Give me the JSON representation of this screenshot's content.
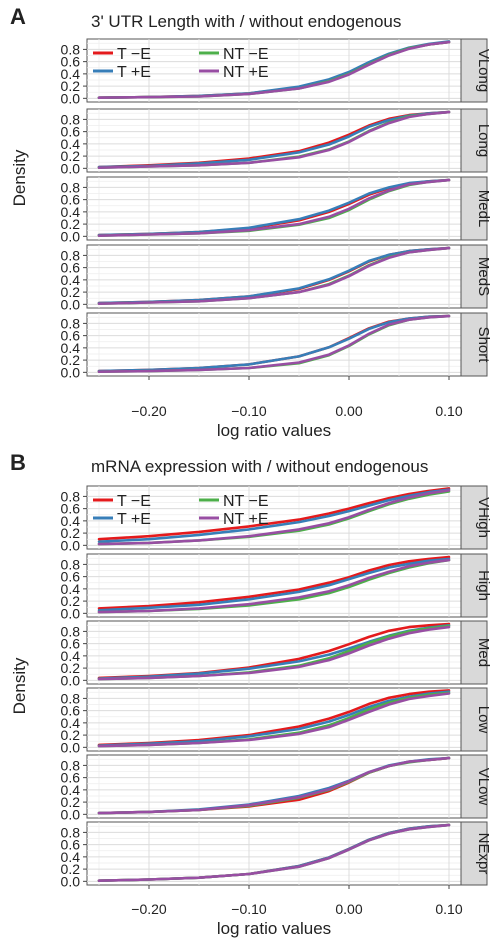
{
  "chart_data": [
    {
      "type": "line",
      "panel_label": "A",
      "title": "3' UTR Length with / without endogenous",
      "xlabel": "log ratio values",
      "ylabel": "Density",
      "xlim": [
        -0.25,
        0.1
      ],
      "ylim": [
        0.0,
        0.95
      ],
      "x_ticks": [
        -0.2,
        -0.1,
        0.0,
        0.1
      ],
      "x_tick_labels": [
        "−0.20",
        "−0.10",
        "0.00",
        "0.10"
      ],
      "y_ticks": [
        0.0,
        0.2,
        0.4,
        0.6,
        0.8
      ],
      "y_tick_labels": [
        "0.0",
        "0.2",
        "0.4",
        "0.6",
        "0.8"
      ],
      "grid": true,
      "legend_position": "top-left inside first facet",
      "x": [
        -0.25,
        -0.2,
        -0.15,
        -0.1,
        -0.05,
        -0.02,
        0.0,
        0.02,
        0.04,
        0.06,
        0.08,
        0.1
      ],
      "legend": [
        {
          "key": "T_mE",
          "label": "T −E",
          "color": "#e41a1c"
        },
        {
          "key": "T_pE",
          "label": "T +E",
          "color": "#377eb8"
        },
        {
          "key": "NT_mE",
          "label": "NT −E",
          "color": "#4daf4a"
        },
        {
          "key": "NT_pE",
          "label": "NT +E",
          "color": "#984ea3"
        }
      ],
      "facets": [
        {
          "name": "VLong",
          "series": [
            {
              "key": "T_mE",
              "values": [
                0.01,
                0.02,
                0.04,
                0.08,
                0.18,
                0.3,
                0.42,
                0.58,
                0.72,
                0.82,
                0.88,
                0.92
              ]
            },
            {
              "key": "T_pE",
              "values": [
                0.01,
                0.02,
                0.04,
                0.08,
                0.19,
                0.31,
                0.43,
                0.59,
                0.73,
                0.83,
                0.89,
                0.93
              ]
            },
            {
              "key": "NT_mE",
              "values": [
                0.01,
                0.02,
                0.03,
                0.07,
                0.16,
                0.28,
                0.4,
                0.56,
                0.71,
                0.82,
                0.88,
                0.92
              ]
            },
            {
              "key": "NT_pE",
              "values": [
                0.01,
                0.02,
                0.03,
                0.07,
                0.16,
                0.27,
                0.39,
                0.55,
                0.7,
                0.81,
                0.88,
                0.92
              ]
            }
          ]
        },
        {
          "name": "Long",
          "series": [
            {
              "key": "T_mE",
              "values": [
                0.02,
                0.05,
                0.09,
                0.16,
                0.28,
                0.42,
                0.55,
                0.7,
                0.81,
                0.87,
                0.9,
                0.92
              ]
            },
            {
              "key": "T_pE",
              "values": [
                0.02,
                0.04,
                0.08,
                0.14,
                0.26,
                0.39,
                0.52,
                0.68,
                0.79,
                0.86,
                0.9,
                0.92
              ]
            },
            {
              "key": "NT_mE",
              "values": [
                0.01,
                0.03,
                0.05,
                0.09,
                0.19,
                0.31,
                0.44,
                0.61,
                0.75,
                0.85,
                0.89,
                0.92
              ]
            },
            {
              "key": "NT_pE",
              "values": [
                0.01,
                0.03,
                0.05,
                0.09,
                0.18,
                0.3,
                0.43,
                0.6,
                0.74,
                0.84,
                0.89,
                0.92
              ]
            }
          ]
        },
        {
          "name": "MedL",
          "series": [
            {
              "key": "T_mE",
              "values": [
                0.02,
                0.04,
                0.07,
                0.13,
                0.26,
                0.4,
                0.53,
                0.68,
                0.79,
                0.86,
                0.9,
                0.92
              ]
            },
            {
              "key": "T_pE",
              "values": [
                0.02,
                0.04,
                0.07,
                0.14,
                0.28,
                0.42,
                0.55,
                0.7,
                0.8,
                0.87,
                0.9,
                0.92
              ]
            },
            {
              "key": "NT_mE",
              "values": [
                0.01,
                0.03,
                0.05,
                0.09,
                0.19,
                0.3,
                0.43,
                0.6,
                0.74,
                0.84,
                0.89,
                0.92
              ]
            },
            {
              "key": "NT_pE",
              "values": [
                0.01,
                0.03,
                0.05,
                0.1,
                0.2,
                0.32,
                0.45,
                0.62,
                0.75,
                0.85,
                0.89,
                0.92
              ]
            }
          ]
        },
        {
          "name": "MedS",
          "series": [
            {
              "key": "T_mE",
              "values": [
                0.02,
                0.04,
                0.07,
                0.13,
                0.25,
                0.4,
                0.54,
                0.7,
                0.81,
                0.87,
                0.9,
                0.92
              ]
            },
            {
              "key": "T_pE",
              "values": [
                0.02,
                0.04,
                0.07,
                0.13,
                0.26,
                0.41,
                0.55,
                0.71,
                0.81,
                0.87,
                0.9,
                0.92
              ]
            },
            {
              "key": "NT_mE",
              "values": [
                0.01,
                0.03,
                0.05,
                0.1,
                0.2,
                0.33,
                0.47,
                0.64,
                0.77,
                0.85,
                0.89,
                0.92
              ]
            },
            {
              "key": "NT_pE",
              "values": [
                0.01,
                0.03,
                0.05,
                0.1,
                0.2,
                0.32,
                0.46,
                0.63,
                0.76,
                0.85,
                0.89,
                0.92
              ]
            }
          ]
        },
        {
          "name": "Short",
          "series": [
            {
              "key": "T_mE",
              "values": [
                0.02,
                0.04,
                0.07,
                0.13,
                0.26,
                0.41,
                0.56,
                0.72,
                0.83,
                0.88,
                0.91,
                0.92
              ]
            },
            {
              "key": "T_pE",
              "values": [
                0.02,
                0.04,
                0.07,
                0.13,
                0.26,
                0.41,
                0.55,
                0.71,
                0.82,
                0.88,
                0.91,
                0.92
              ]
            },
            {
              "key": "NT_mE",
              "values": [
                0.01,
                0.02,
                0.04,
                0.07,
                0.15,
                0.28,
                0.43,
                0.62,
                0.77,
                0.86,
                0.9,
                0.92
              ]
            },
            {
              "key": "NT_pE",
              "values": [
                0.01,
                0.02,
                0.04,
                0.07,
                0.16,
                0.29,
                0.44,
                0.63,
                0.78,
                0.86,
                0.9,
                0.92
              ]
            }
          ]
        }
      ]
    },
    {
      "type": "line",
      "panel_label": "B",
      "title": "mRNA expression with / without endogenous",
      "xlabel": "log ratio values",
      "ylabel": "Density",
      "xlim": [
        -0.25,
        0.1
      ],
      "ylim": [
        0.0,
        0.95
      ],
      "x_ticks": [
        -0.2,
        -0.1,
        0.0,
        0.1
      ],
      "x_tick_labels": [
        "−0.20",
        "−0.10",
        "0.00",
        "0.10"
      ],
      "y_ticks": [
        0.0,
        0.2,
        0.4,
        0.6,
        0.8
      ],
      "y_tick_labels": [
        "0.0",
        "0.2",
        "0.4",
        "0.6",
        "0.8"
      ],
      "grid": true,
      "legend_position": "top-left inside first facet",
      "x": [
        -0.25,
        -0.2,
        -0.15,
        -0.1,
        -0.05,
        -0.02,
        0.0,
        0.02,
        0.04,
        0.06,
        0.08,
        0.1
      ],
      "legend": [
        {
          "key": "T_mE",
          "label": "T −E",
          "color": "#e41a1c"
        },
        {
          "key": "T_pE",
          "label": "T +E",
          "color": "#377eb8"
        },
        {
          "key": "NT_mE",
          "label": "NT −E",
          "color": "#4daf4a"
        },
        {
          "key": "NT_pE",
          "label": "NT +E",
          "color": "#984ea3"
        }
      ],
      "facets": [
        {
          "name": "VHigh",
          "series": [
            {
              "key": "T_mE",
              "values": [
                0.1,
                0.15,
                0.22,
                0.31,
                0.42,
                0.52,
                0.6,
                0.69,
                0.77,
                0.84,
                0.89,
                0.93
              ]
            },
            {
              "key": "T_pE",
              "values": [
                0.06,
                0.1,
                0.17,
                0.26,
                0.38,
                0.48,
                0.56,
                0.65,
                0.74,
                0.81,
                0.87,
                0.91
              ]
            },
            {
              "key": "NT_mE",
              "values": [
                0.02,
                0.04,
                0.08,
                0.14,
                0.24,
                0.34,
                0.44,
                0.56,
                0.67,
                0.76,
                0.83,
                0.88
              ]
            },
            {
              "key": "NT_pE",
              "values": [
                0.02,
                0.04,
                0.08,
                0.15,
                0.26,
                0.36,
                0.46,
                0.58,
                0.69,
                0.78,
                0.85,
                0.9
              ]
            }
          ]
        },
        {
          "name": "High",
          "series": [
            {
              "key": "T_mE",
              "values": [
                0.08,
                0.12,
                0.18,
                0.27,
                0.39,
                0.5,
                0.59,
                0.7,
                0.79,
                0.85,
                0.89,
                0.92
              ]
            },
            {
              "key": "T_pE",
              "values": [
                0.05,
                0.09,
                0.14,
                0.23,
                0.35,
                0.46,
                0.56,
                0.66,
                0.75,
                0.81,
                0.86,
                0.89
              ]
            },
            {
              "key": "NT_mE",
              "values": [
                0.02,
                0.04,
                0.07,
                0.13,
                0.23,
                0.33,
                0.43,
                0.55,
                0.66,
                0.75,
                0.82,
                0.87
              ]
            },
            {
              "key": "NT_pE",
              "values": [
                0.02,
                0.04,
                0.08,
                0.15,
                0.26,
                0.36,
                0.46,
                0.58,
                0.68,
                0.77,
                0.83,
                0.87
              ]
            }
          ]
        },
        {
          "name": "Med",
          "series": [
            {
              "key": "T_mE",
              "values": [
                0.04,
                0.07,
                0.12,
                0.21,
                0.35,
                0.48,
                0.59,
                0.71,
                0.81,
                0.87,
                0.9,
                0.92
              ]
            },
            {
              "key": "T_pE",
              "values": [
                0.03,
                0.06,
                0.11,
                0.19,
                0.31,
                0.42,
                0.52,
                0.63,
                0.73,
                0.81,
                0.86,
                0.9
              ]
            },
            {
              "key": "NT_mE",
              "values": [
                0.02,
                0.04,
                0.07,
                0.13,
                0.24,
                0.36,
                0.48,
                0.61,
                0.72,
                0.8,
                0.85,
                0.89
              ]
            },
            {
              "key": "NT_pE",
              "values": [
                0.02,
                0.04,
                0.07,
                0.12,
                0.22,
                0.33,
                0.44,
                0.57,
                0.68,
                0.77,
                0.83,
                0.87
              ]
            }
          ]
        },
        {
          "name": "Low",
          "series": [
            {
              "key": "T_mE",
              "values": [
                0.04,
                0.07,
                0.12,
                0.2,
                0.34,
                0.47,
                0.58,
                0.71,
                0.81,
                0.87,
                0.91,
                0.93
              ]
            },
            {
              "key": "T_pE",
              "values": [
                0.03,
                0.06,
                0.1,
                0.18,
                0.3,
                0.42,
                0.53,
                0.66,
                0.76,
                0.83,
                0.88,
                0.91
              ]
            },
            {
              "key": "NT_mE",
              "values": [
                0.02,
                0.04,
                0.07,
                0.13,
                0.24,
                0.36,
                0.48,
                0.62,
                0.73,
                0.81,
                0.86,
                0.89
              ]
            },
            {
              "key": "NT_pE",
              "values": [
                0.02,
                0.04,
                0.07,
                0.12,
                0.22,
                0.33,
                0.45,
                0.58,
                0.7,
                0.79,
                0.84,
                0.88
              ]
            }
          ]
        },
        {
          "name": "VLow",
          "series": [
            {
              "key": "T_mE",
              "values": [
                0.02,
                0.04,
                0.07,
                0.13,
                0.24,
                0.38,
                0.52,
                0.68,
                0.79,
                0.86,
                0.89,
                0.92
              ]
            },
            {
              "key": "T_pE",
              "values": [
                0.02,
                0.04,
                0.08,
                0.16,
                0.3,
                0.43,
                0.55,
                0.69,
                0.8,
                0.86,
                0.9,
                0.92
              ]
            },
            {
              "key": "NT_mE",
              "values": [
                0.02,
                0.04,
                0.07,
                0.14,
                0.27,
                0.4,
                0.53,
                0.68,
                0.79,
                0.85,
                0.89,
                0.92
              ]
            },
            {
              "key": "NT_pE",
              "values": [
                0.02,
                0.04,
                0.07,
                0.15,
                0.28,
                0.41,
                0.54,
                0.69,
                0.79,
                0.86,
                0.89,
                0.92
              ]
            }
          ]
        },
        {
          "name": "NExpr",
          "series": [
            {
              "key": "T_mE",
              "values": [
                0.01,
                0.03,
                0.06,
                0.12,
                0.25,
                0.39,
                0.53,
                0.68,
                0.79,
                0.86,
                0.9,
                0.92
              ]
            },
            {
              "key": "T_pE",
              "values": [
                0.01,
                0.03,
                0.06,
                0.12,
                0.25,
                0.39,
                0.53,
                0.68,
                0.79,
                0.86,
                0.9,
                0.92
              ]
            },
            {
              "key": "NT_mE",
              "values": [
                0.01,
                0.03,
                0.06,
                0.12,
                0.24,
                0.38,
                0.52,
                0.67,
                0.78,
                0.85,
                0.89,
                0.92
              ]
            },
            {
              "key": "NT_pE",
              "values": [
                0.01,
                0.03,
                0.06,
                0.12,
                0.24,
                0.38,
                0.52,
                0.67,
                0.78,
                0.85,
                0.89,
                0.92
              ]
            }
          ]
        }
      ]
    }
  ]
}
